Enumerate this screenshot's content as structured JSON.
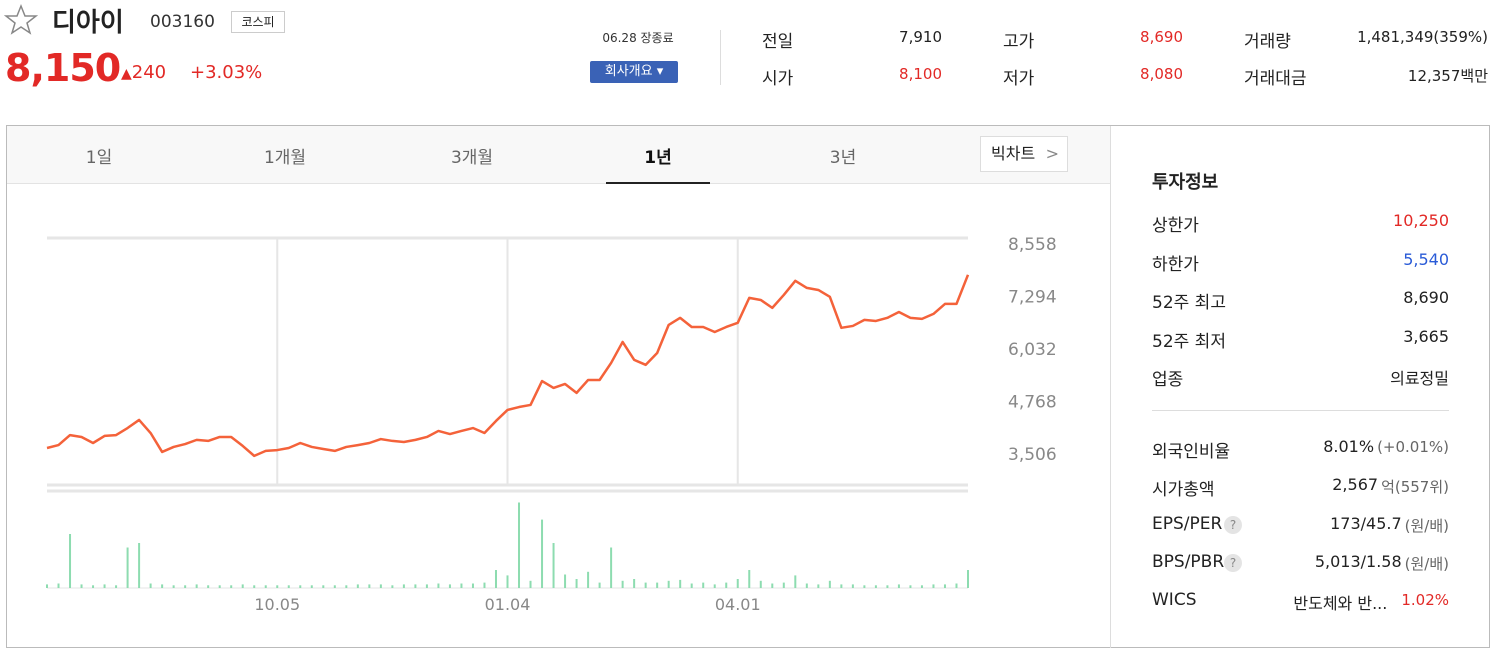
{
  "header": {
    "name": "디아이",
    "code": "003160",
    "market": "코스피",
    "price": "8,150",
    "change": "240",
    "change_rate": "+3.03%",
    "status": "06.28 장종료",
    "company_button": "회사개요"
  },
  "summary": {
    "rows": [
      [
        [
          "전일",
          "7,910"
        ],
        [
          "고가",
          "8,690"
        ],
        [
          "거래량",
          "1,481,349(359%)"
        ]
      ],
      [
        [
          "시가",
          "8,100"
        ],
        [
          "저가",
          "8,080"
        ],
        [
          "거래대금",
          "12,357백만"
        ]
      ]
    ]
  },
  "tabs": {
    "items": [
      "1일",
      "1개월",
      "3개월",
      "1년",
      "3년"
    ],
    "active": 3,
    "big_chart": "빅차트"
  },
  "chart_data": {
    "type": "line",
    "categories": [
      null,
      null,
      null,
      null,
      null,
      null,
      null,
      null,
      null,
      null,
      null,
      null,
      null,
      null,
      null,
      null,
      null,
      null,
      null,
      null,
      "10.05",
      null,
      null,
      null,
      null,
      null,
      null,
      null,
      null,
      null,
      null,
      null,
      null,
      null,
      null,
      null,
      null,
      null,
      null,
      null,
      "01.04",
      null,
      null,
      null,
      null,
      null,
      null,
      null,
      null,
      null,
      null,
      null,
      null,
      null,
      null,
      null,
      null,
      null,
      null,
      null,
      "04.01",
      null,
      null,
      null,
      null,
      null,
      null,
      null,
      null,
      null,
      null,
      null,
      null,
      null,
      null,
      null,
      null,
      null,
      null,
      null,
      null
    ],
    "series": [
      {
        "name": "주가",
        "color": "#f4623a",
        "values": [
          3650,
          3720,
          3960,
          3915,
          3770,
          3940,
          3960,
          4130,
          4325,
          4010,
          3555,
          3675,
          3745,
          3845,
          3820,
          3915,
          3915,
          3700,
          3460,
          3580,
          3600,
          3650,
          3770,
          3675,
          3625,
          3580,
          3675,
          3720,
          3770,
          3865,
          3820,
          3795,
          3845,
          3915,
          4060,
          3985,
          4060,
          4130,
          4010,
          4300,
          4565,
          4635,
          4685,
          5260,
          5095,
          5190,
          4975,
          5285,
          5285,
          5695,
          6200,
          5770,
          5650,
          5935,
          6610,
          6780,
          6560,
          6560,
          6440,
          6560,
          6660,
          7260,
          7210,
          7020,
          7330,
          7670,
          7500,
          7450,
          7285,
          6540,
          6585,
          6730,
          6705,
          6780,
          6920,
          6780,
          6755,
          6875,
          7115,
          7115,
          7815
        ]
      },
      {
        "name": "거래량",
        "color": "#8ddcb0",
        "axis": "y2",
        "values": [
          4,
          5,
          60,
          4,
          3,
          4,
          3,
          45,
          50,
          5,
          4,
          3,
          3,
          4,
          3,
          3,
          3,
          4,
          3,
          3,
          3,
          3,
          3,
          3,
          3,
          3,
          3,
          4,
          4,
          4,
          3,
          4,
          4,
          4,
          5,
          4,
          5,
          5,
          6,
          20,
          14,
          95,
          8,
          76,
          50,
          15,
          10,
          18,
          6,
          45,
          8,
          10,
          6,
          6,
          8,
          9,
          5,
          6,
          4,
          6,
          10,
          20,
          8,
          5,
          6,
          14,
          5,
          4,
          8,
          4,
          4,
          3,
          3,
          3,
          4,
          3,
          3,
          4,
          4,
          5,
          20
        ]
      }
    ],
    "ylim": [
      2760,
      8700
    ],
    "yticks": [
      {
        "value": 3506,
        "label": "3,506"
      },
      {
        "value": 4768,
        "label": "4,768"
      },
      {
        "value": 6032,
        "label": "6,032"
      },
      {
        "value": 7294,
        "label": "7,294"
      },
      {
        "value": 8558,
        "label": "8,558"
      }
    ],
    "y2lim": [
      0,
      100
    ],
    "grid": true
  },
  "invest": {
    "title": "투자정보",
    "rows": [
      [
        "상한가",
        "10,250"
      ],
      [
        "하한가",
        "5,540"
      ],
      [
        "52주 최고",
        "8,690"
      ],
      [
        "52주 최저",
        "3,665"
      ],
      [
        "업종",
        "의료정밀"
      ]
    ],
    "rows2": [
      [
        "외국인비율",
        "8.01%",
        "(+0.01%)"
      ],
      [
        "시가총액",
        "2,567",
        "억(557위)"
      ],
      [
        "EPS/PER",
        "173/45.7",
        "(원/배)"
      ],
      [
        "BPS/PBR",
        "5,013/1.58",
        "(원/배)"
      ],
      [
        "WICS",
        "반도체와 반...",
        "1.02%"
      ]
    ]
  }
}
